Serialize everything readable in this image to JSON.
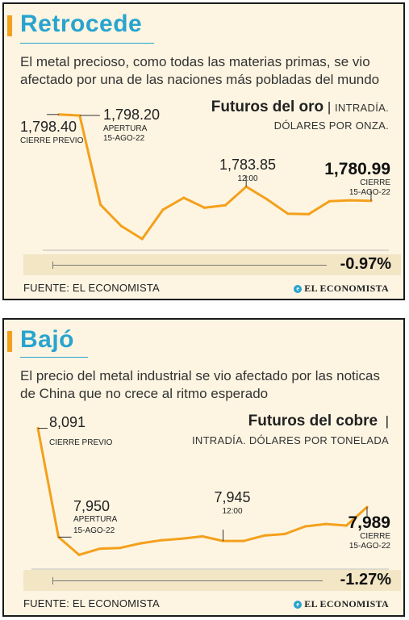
{
  "panels": [
    {
      "title": "Retrocede",
      "subtitle": "El metal precioso, como todas las materias primas, se vio afectado por una de las naciones más pobladas del mundo",
      "chart_title_bold": "Futuros del oro",
      "chart_title_sep": "|",
      "chart_unit_line1": "INTRADÍA.",
      "chart_unit_line2": "DÓLARES POR ONZA.",
      "labels": {
        "prev_value": "1,798.40",
        "prev_caption": "CIERRE PREVIO",
        "open_value": "1,798.20",
        "open_caption1": "APERTURA",
        "open_caption2": "15-AGO-22",
        "mid_value": "1,783.85",
        "mid_caption": "12:00",
        "close_value": "1,780.99",
        "close_caption1": "CIERRE",
        "close_caption2": "15-AGO-22"
      },
      "change": "-0.97%",
      "source": "FUENTE: EL ECONOMISTA",
      "logo": "EL ECONOMISTA"
    },
    {
      "title": "Bajó",
      "subtitle": "El precio del metal industrial se vio afectado por las noticas de China que no crece al ritmo esperado",
      "chart_title_bold": "Futuros del cobre",
      "chart_title_sep": "|",
      "chart_unit_line1": "",
      "chart_unit_line2": "INTRADÍA. DÓLARES POR TONELADA",
      "labels": {
        "prev_value": "8,091",
        "prev_caption": "CIERRE PREVIO",
        "open_value": "7,950",
        "open_caption1": "APERTURA",
        "open_caption2": "15-AGO-22",
        "mid_value": "7,945",
        "mid_caption": "12:00",
        "close_value": "7,989",
        "close_caption1": "CIERRE",
        "close_caption2": "15-AGO-22"
      },
      "change": "-1.27%",
      "source": "FUENTE: EL ECONOMISTA",
      "logo": "EL ECONOMISTA"
    }
  ],
  "colors": {
    "line": "#f4a01c",
    "title": "#29a4cf",
    "panel_bg": "#fdf5e2",
    "bar_bg": "#f3e6c5"
  },
  "chart_data": [
    {
      "type": "line",
      "title": "Futuros del oro",
      "ylabel": "DÓLARES POR ONZA",
      "x": [
        0,
        1,
        2,
        3,
        4,
        5,
        6,
        7,
        8,
        9,
        10,
        11,
        12,
        13,
        14,
        15
      ],
      "values": [
        1798.4,
        1798.2,
        1780.2,
        1775.9,
        1773.3,
        1779.2,
        1781.6,
        1779.6,
        1780.1,
        1783.85,
        1781.3,
        1778.4,
        1778.3,
        1780.9,
        1781.1,
        1780.99
      ],
      "ylim": [
        1772,
        1800
      ],
      "annotations": [
        {
          "index": 0,
          "label": "1,798.40 CIERRE PREVIO"
        },
        {
          "index": 1,
          "label": "1,798.20 APERTURA 15-AGO-22"
        },
        {
          "index": 9,
          "label": "1,783.85 12:00"
        },
        {
          "index": 15,
          "label": "1,780.99 CIERRE 15-AGO-22"
        }
      ],
      "grid": false
    },
    {
      "type": "line",
      "title": "Futuros del cobre",
      "ylabel": "DÓLARES POR TONELADA",
      "x": [
        0,
        1,
        2,
        3,
        4,
        5,
        6,
        7,
        8,
        9,
        10,
        11,
        12,
        13,
        14,
        15,
        16
      ],
      "values": [
        8091,
        7950,
        7927,
        7935,
        7936,
        7942,
        7946,
        7948,
        7951,
        7945,
        7945,
        7952,
        7954,
        7964,
        7967,
        7965,
        7989
      ],
      "ylim": [
        7920,
        8100
      ],
      "annotations": [
        {
          "index": 0,
          "label": "8,091 CIERRE PREVIO"
        },
        {
          "index": 1,
          "label": "7,950 APERTURA 15-AGO-22"
        },
        {
          "index": 9,
          "label": "7,945 12:00"
        },
        {
          "index": 16,
          "label": "7,989 CIERRE 15-AGO-22"
        }
      ],
      "grid": false
    }
  ]
}
